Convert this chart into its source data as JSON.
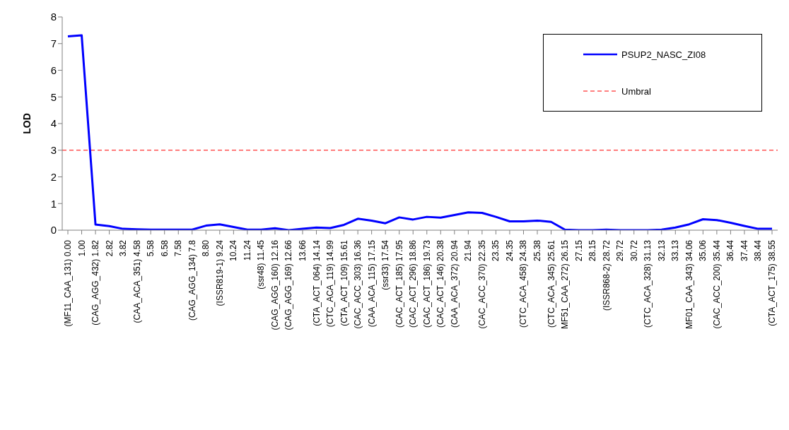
{
  "chart_data": {
    "type": "line",
    "ylabel": "LOD",
    "categories": [
      "(MF11_CAA_131) 0.00",
      "1.00",
      "(CAG_AGG_432) 1.82",
      "2.82",
      "3.82",
      "(CAA_ACA_351) 4.58",
      "5.58",
      "6.58",
      "7.58",
      "(CAG_AGG_134) 7.8",
      "8.80",
      "(ISSR819-1) 9.24",
      "10.24",
      "11.24",
      "(ssr48) 11.45",
      "(CAG_AGG_160) 12.16",
      "(CAG_AGG_169) 12.66",
      "13.66",
      "(CTA_ACT_064) 14.14",
      "(CTC_ACA_119) 14.99",
      "(CTA_ACT_109) 15.61",
      "(CAC_ACC_303) 16.36",
      "(CAA_ACA_115) 17.15",
      "(ssr33) 17.54",
      "(CAC_ACT_185) 17.95",
      "(CAC_ACT_296) 18.86",
      "(CAC_ACT_186) 19.73",
      "(CAC_ACT_146) 20.38",
      "(CAA_ACA_372) 20.94",
      "21.94",
      "(CAC_ACC_370) 22.35",
      "23.35",
      "24.35",
      "(CTC_ACA_458) 24.38",
      "25.38",
      "(CTC_ACA_345) 25.61",
      "MF51_CAA_272) 26.15",
      "27.15",
      "28.15",
      "(ISSR868-2) 28.72",
      "29.72",
      "30.72",
      "(CTC_ACA_328) 31.13",
      "32.13",
      "33.13",
      "MF01_CAA_343) 34.06",
      "35.06",
      "(CAC_ACC_200) 35.44",
      "36.44",
      "37.44",
      "38.44",
      "(CTA_ACT_175) 38.55"
    ],
    "series": [
      {
        "name": "PSUP2_NASC_ZI08",
        "color": "#0000ff",
        "values": [
          7.27,
          7.31,
          0.21,
          0.15,
          0.05,
          0.03,
          0.02,
          0.02,
          0.02,
          0.02,
          0.17,
          0.22,
          0.12,
          0.02,
          0.02,
          0.07,
          0.0,
          0.05,
          0.1,
          0.08,
          0.2,
          0.43,
          0.36,
          0.26,
          0.48,
          0.4,
          0.5,
          0.47,
          0.57,
          0.67,
          0.65,
          0.5,
          0.33,
          0.33,
          0.36,
          0.31,
          0.02,
          0.0,
          0.0,
          0.02,
          0.0,
          0.0,
          0.0,
          0.02,
          0.1,
          0.22,
          0.41,
          0.38,
          0.28,
          0.16,
          0.05,
          0.05
        ]
      }
    ],
    "ref_lines": [
      {
        "axis": "y",
        "value": 3,
        "label": "Umbral",
        "color": "#ff0000",
        "line_style": "dashed"
      }
    ],
    "ylim": [
      0,
      8
    ],
    "yticks": [
      0,
      1,
      2,
      3,
      4,
      5,
      6,
      7,
      8
    ],
    "grid": false,
    "legend": "top right",
    "marker": "none",
    "line_style": "solid"
  }
}
